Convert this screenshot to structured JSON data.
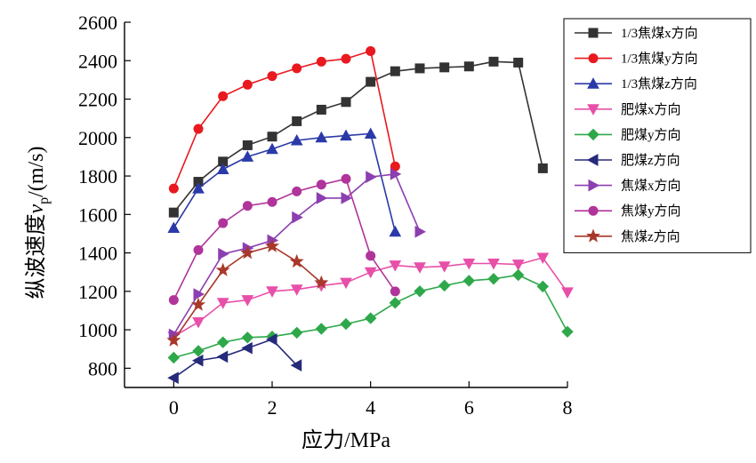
{
  "chart_data": {
    "type": "line",
    "xlabel": "应力/MPa",
    "ylabel": "纵波速度",
    "ylabel_var": "v",
    "ylabel_sub": "p",
    "ylabel_unit": "/(m/s)",
    "xlim": [
      -1,
      8
    ],
    "ylim": [
      700,
      2600
    ],
    "xticks": [
      0,
      2,
      4,
      6,
      8
    ],
    "yticks": [
      800,
      1000,
      1200,
      1400,
      1600,
      1800,
      2000,
      2200,
      2400,
      2600
    ],
    "grid": false,
    "legend_position": "top-right",
    "series": [
      {
        "name": "1/3焦煤x方向",
        "color": "#333333",
        "marker": "square",
        "x": [
          0,
          0.5,
          1,
          1.5,
          2,
          2.5,
          3,
          3.5,
          4,
          4.5,
          5,
          5.5,
          6,
          6.5,
          7,
          7.5
        ],
        "y": [
          1610,
          1770,
          1875,
          1960,
          2005,
          2085,
          2145,
          2185,
          2290,
          2345,
          2360,
          2365,
          2370,
          2395,
          2390,
          1840
        ]
      },
      {
        "name": "1/3焦煤y方向",
        "color": "#e8191f",
        "marker": "circle",
        "x": [
          0,
          0.5,
          1,
          1.5,
          2,
          2.5,
          3,
          3.5,
          4,
          4.5
        ],
        "y": [
          1735,
          2045,
          2215,
          2275,
          2320,
          2360,
          2395,
          2410,
          2450,
          1850
        ]
      },
      {
        "name": "1/3焦煤z方向",
        "color": "#2b3aa8",
        "marker": "triangle-up",
        "x": [
          0,
          0.5,
          1,
          1.5,
          2,
          2.5,
          3,
          3.5,
          4,
          4.5
        ],
        "y": [
          1530,
          1735,
          1835,
          1900,
          1940,
          1985,
          2000,
          2010,
          2020,
          1510
        ]
      },
      {
        "name": "肥煤x方向",
        "color": "#e84fa8",
        "marker": "triangle-down",
        "x": [
          0,
          0.5,
          1,
          1.5,
          2,
          2.5,
          3,
          3.5,
          4,
          4.5,
          5,
          5.5,
          6,
          6.5,
          7,
          7.5,
          8
        ],
        "y": [
          965,
          1040,
          1140,
          1155,
          1200,
          1210,
          1230,
          1245,
          1300,
          1335,
          1325,
          1330,
          1345,
          1345,
          1340,
          1375,
          1195
        ]
      },
      {
        "name": "肥煤y方向",
        "color": "#2ea84a",
        "marker": "diamond",
        "x": [
          0,
          0.5,
          1,
          1.5,
          2,
          2.5,
          3,
          3.5,
          4,
          4.5,
          5,
          5.5,
          6,
          6.5,
          7,
          7.5,
          8
        ],
        "y": [
          855,
          890,
          935,
          960,
          965,
          985,
          1005,
          1030,
          1060,
          1140,
          1200,
          1230,
          1255,
          1265,
          1285,
          1225,
          990
        ]
      },
      {
        "name": "肥煤z方向",
        "color": "#262a7a",
        "marker": "triangle-left",
        "x": [
          0,
          0.5,
          1,
          1.5,
          2,
          2.5
        ],
        "y": [
          750,
          840,
          860,
          905,
          950,
          815
        ]
      },
      {
        "name": "焦煤x方向",
        "color": "#8c3fb0",
        "marker": "triangle-right",
        "x": [
          0,
          0.5,
          1,
          1.5,
          2,
          2.5,
          3,
          3.5,
          4,
          4.5,
          5
        ],
        "y": [
          975,
          1185,
          1395,
          1425,
          1465,
          1585,
          1685,
          1685,
          1795,
          1810,
          1510
        ]
      },
      {
        "name": "焦煤y方向",
        "color": "#b0349a",
        "marker": "circle",
        "x": [
          0,
          0.5,
          1,
          1.5,
          2,
          2.5,
          3,
          3.5,
          4,
          4.5
        ],
        "y": [
          1155,
          1415,
          1555,
          1645,
          1665,
          1720,
          1755,
          1785,
          1385,
          1200
        ]
      },
      {
        "name": "焦煤z方向",
        "color": "#a8382a",
        "marker": "star",
        "x": [
          0,
          0.5,
          1,
          1.5,
          2,
          2.5,
          3
        ],
        "y": [
          945,
          1130,
          1310,
          1400,
          1435,
          1355,
          1245
        ]
      }
    ]
  }
}
